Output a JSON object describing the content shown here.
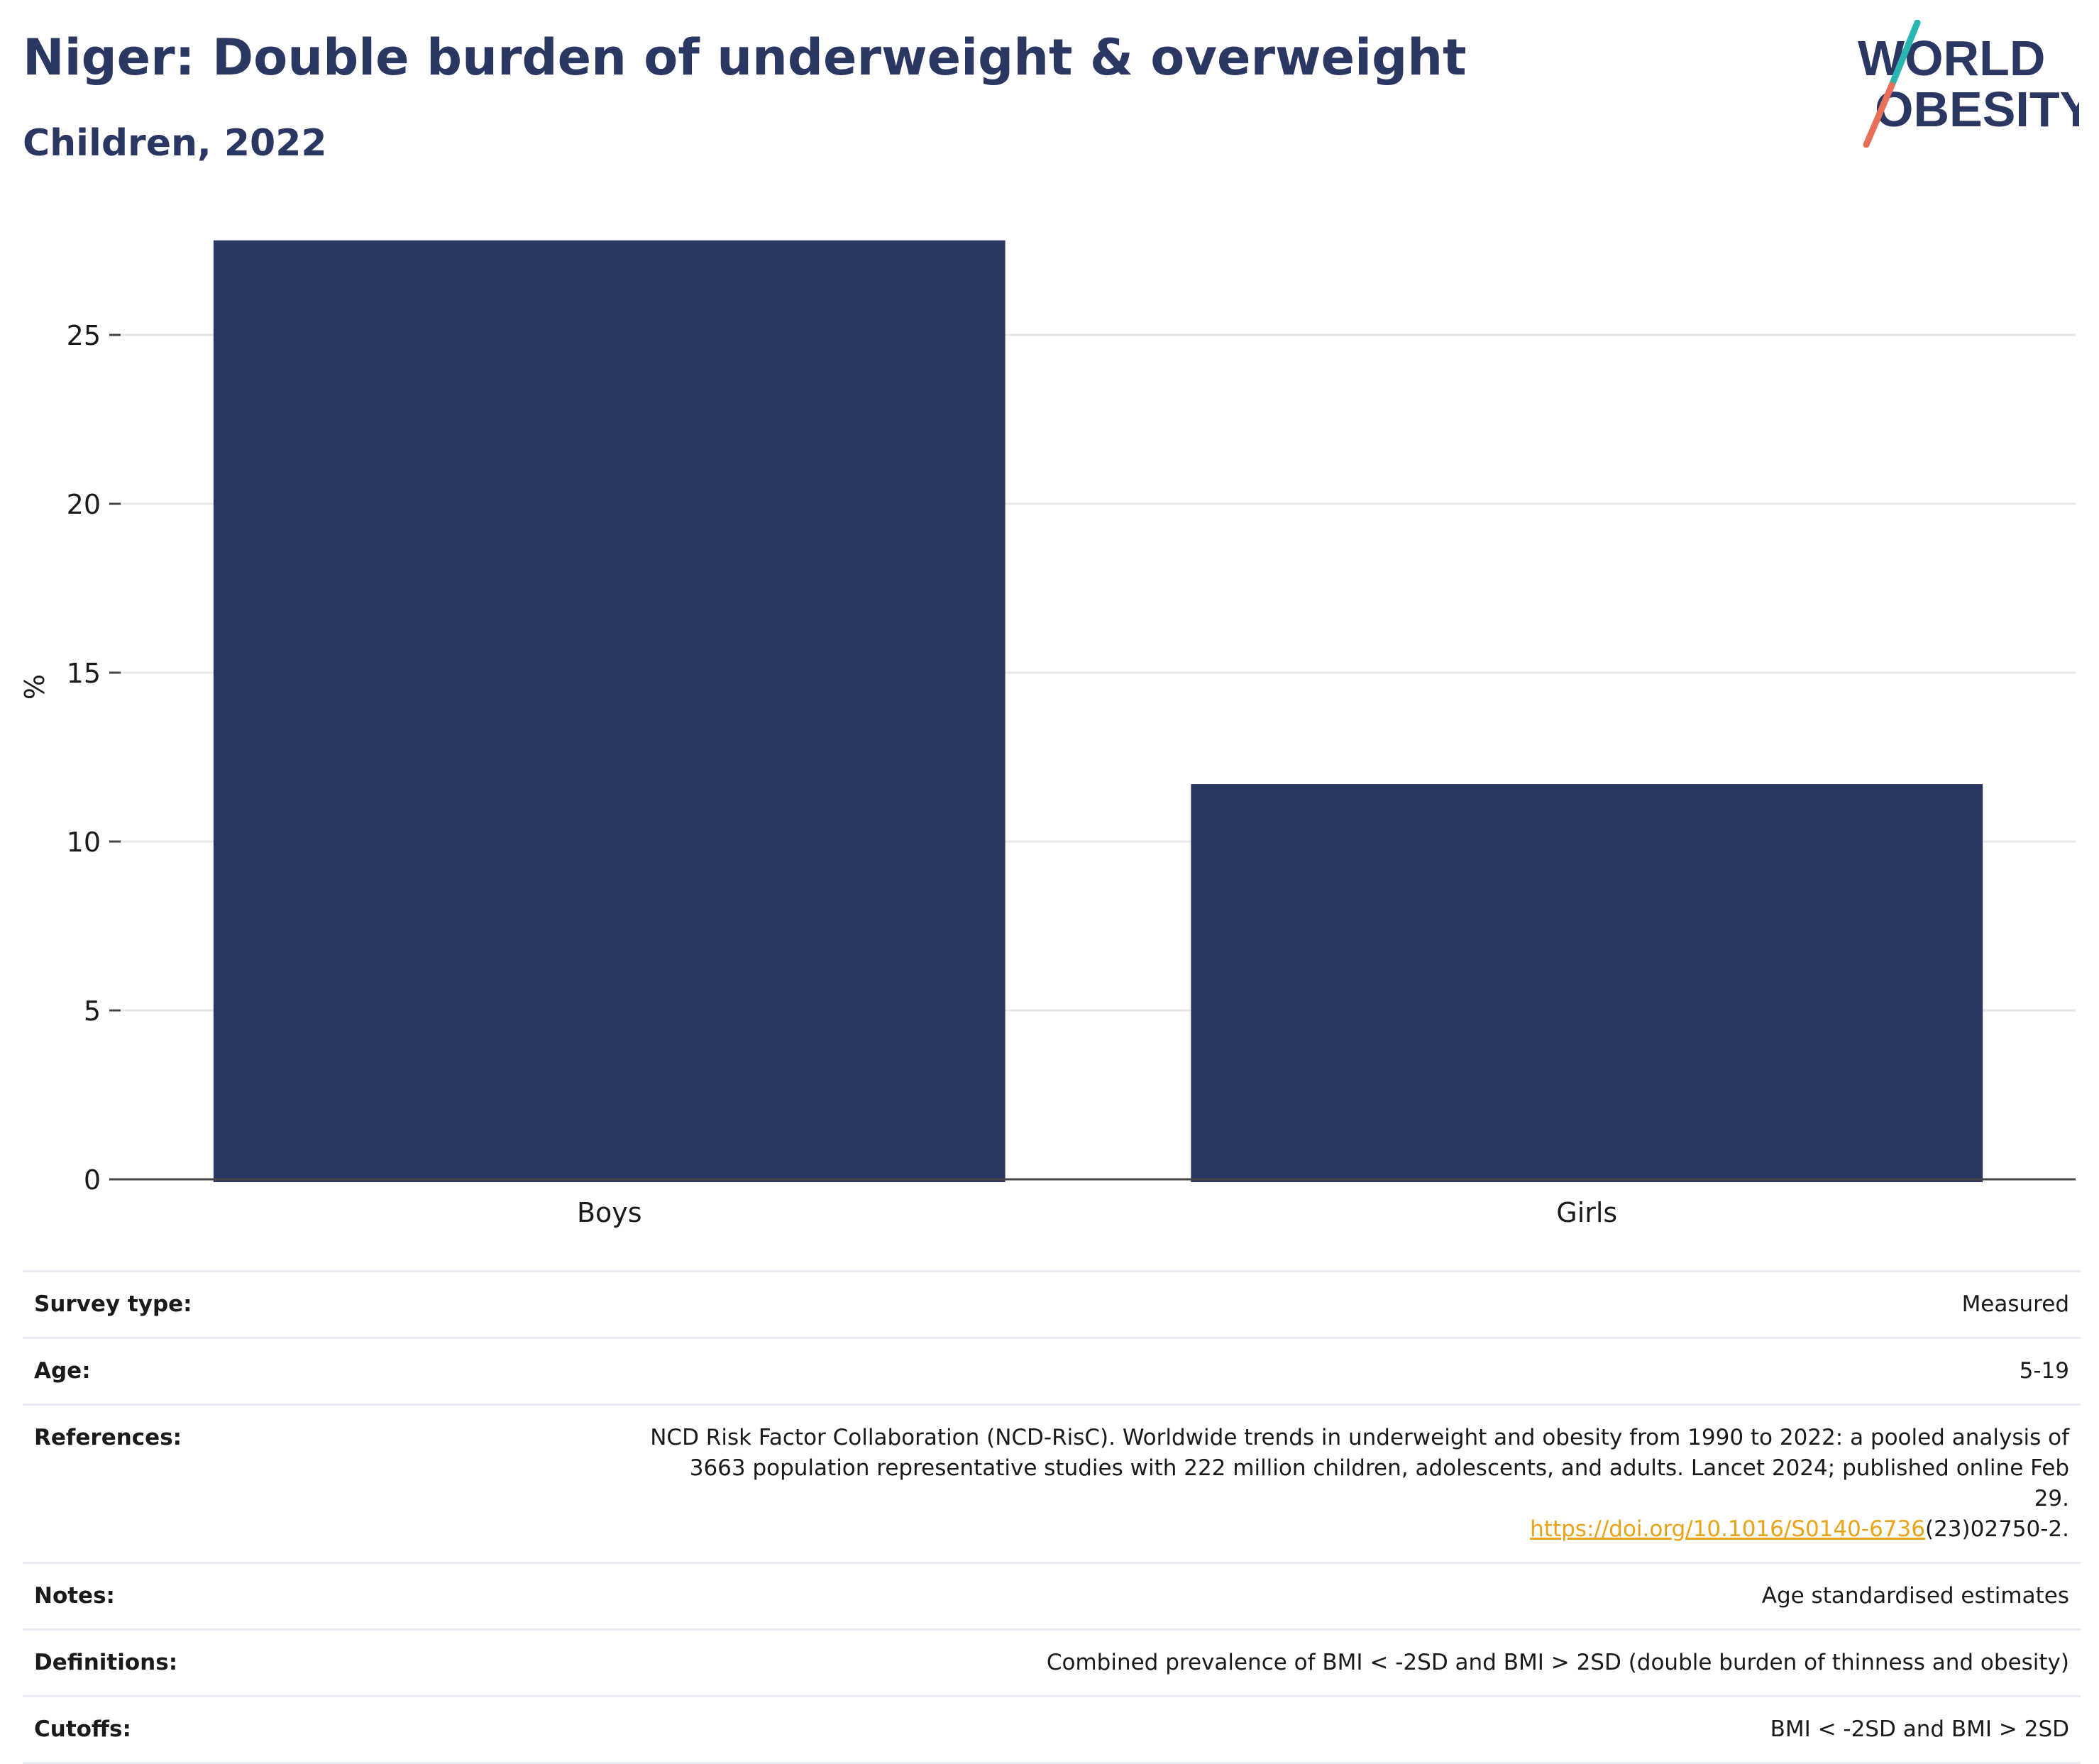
{
  "header": {
    "title": "Niger: Double burden of underweight & overweight",
    "subtitle": "Children, 2022"
  },
  "logo": {
    "line1": "WORLD",
    "line2": "OBESITY",
    "colors": {
      "text": "#2b3763",
      "slash_top": "#2bb5b0",
      "slash_bottom": "#e8705a"
    }
  },
  "chart_data": {
    "type": "bar",
    "categories": [
      "Boys",
      "Girls"
    ],
    "values": [
      27.8,
      11.7
    ],
    "title": "Niger: Double burden of underweight & overweight",
    "subtitle": "Children, 2022",
    "xlabel": "",
    "ylabel": "%",
    "ylim": [
      0,
      28.8
    ],
    "yticks": [
      0,
      5,
      10,
      15,
      20,
      25
    ],
    "grid": true,
    "bar_color": "#2b3763"
  },
  "meta": {
    "rows": [
      {
        "label": "Survey type:",
        "value": "Measured"
      },
      {
        "label": "Age:",
        "value": "5-19"
      },
      {
        "label": "References:",
        "value": "NCD Risk Factor Collaboration (NCD-RisC). Worldwide trends in underweight and obesity from 1990 to 2022: a pooled analysis of\n3663 population representative studies with 222 million children, adolescents, and adults. Lancet 2024; published online Feb 29.",
        "link": "https://doi.org/10.1016/S0140-6736",
        "link_suffix": "(23)02750-2."
      },
      {
        "label": "Notes:",
        "value": "Age standardised estimates"
      },
      {
        "label": "Definitions:",
        "value": "Combined prevalence of BMI < -2SD and BMI > 2SD (double burden of thinness and obesity)"
      },
      {
        "label": "Cutoffs:",
        "value": "BMI < -2SD and BMI > 2SD"
      }
    ]
  }
}
